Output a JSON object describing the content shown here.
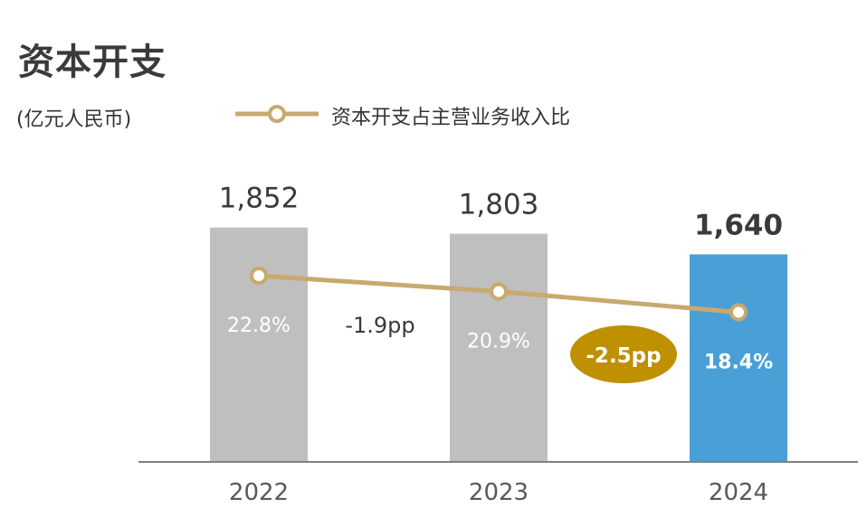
{
  "title": "资本开支",
  "unit": "(亿元人民币)",
  "legend": {
    "line_label": "资本开支占主营业务收入比"
  },
  "colors": {
    "bar_default": "#bfbfbf",
    "bar_highlight": "#4aa0d6",
    "line": "#c8a96e",
    "badge": "#bf9000",
    "axis": "#808080",
    "text_dark": "#3a3a3a",
    "tick": "#595959"
  },
  "chart_data": {
    "type": "bar",
    "categories": [
      "2022",
      "2023",
      "2024"
    ],
    "series": [
      {
        "name": "资本开支",
        "values": [
          1852,
          1803,
          1640
        ],
        "labels": [
          "1,852",
          "1,803",
          "1,640"
        ]
      },
      {
        "name": "资本开支占主营业务收入比",
        "type": "line",
        "values": [
          22.8,
          20.9,
          18.4
        ],
        "labels": [
          "22.8%",
          "20.9%",
          "18.4%"
        ]
      }
    ],
    "highlight_index": 2,
    "annotations": [
      {
        "text": "-1.9pp",
        "between": [
          "2022",
          "2023"
        ],
        "style": "plain"
      },
      {
        "text": "-2.5pp",
        "between": [
          "2023",
          "2024"
        ],
        "style": "badge"
      }
    ]
  }
}
